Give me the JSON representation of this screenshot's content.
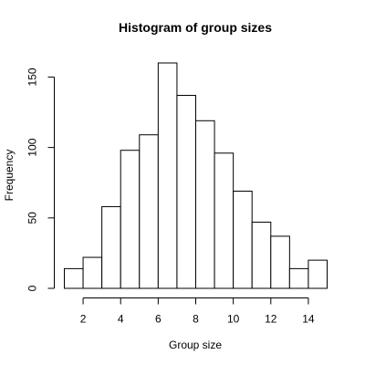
{
  "chart_data": {
    "type": "bar",
    "title": "Histogram of group sizes",
    "xlabel": "Group size",
    "ylabel": "Frequency",
    "bins": [
      {
        "start": 1,
        "end": 2,
        "count": 14
      },
      {
        "start": 2,
        "end": 3,
        "count": 22
      },
      {
        "start": 3,
        "end": 4,
        "count": 58
      },
      {
        "start": 4,
        "end": 5,
        "count": 98
      },
      {
        "start": 5,
        "end": 6,
        "count": 109
      },
      {
        "start": 6,
        "end": 7,
        "count": 160
      },
      {
        "start": 7,
        "end": 8,
        "count": 137
      },
      {
        "start": 8,
        "end": 9,
        "count": 119
      },
      {
        "start": 9,
        "end": 10,
        "count": 96
      },
      {
        "start": 10,
        "end": 11,
        "count": 69
      },
      {
        "start": 11,
        "end": 12,
        "count": 47
      },
      {
        "start": 12,
        "end": 13,
        "count": 37
      },
      {
        "start": 13,
        "end": 14,
        "count": 14
      },
      {
        "start": 14,
        "end": 15,
        "count": 20
      }
    ],
    "xlim": [
      1,
      15
    ],
    "ylim": [
      0,
      160
    ],
    "x_ticks": [
      2,
      4,
      6,
      8,
      10,
      12,
      14
    ],
    "y_ticks": [
      0,
      50,
      100,
      150
    ],
    "grid": false,
    "legend": "none"
  }
}
